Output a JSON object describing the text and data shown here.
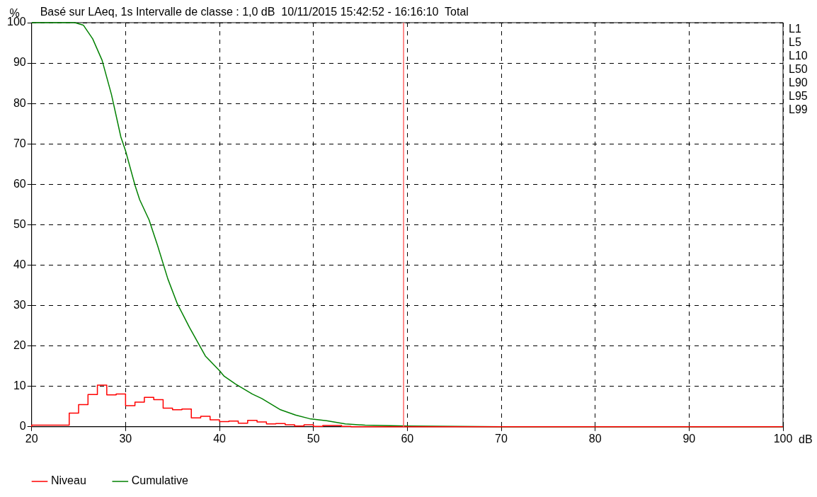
{
  "chart_data": {
    "type": "step",
    "title": "Basé sur LAeq, 1s Intervalle de classe : 1,0 dB  10/11/2015 15:42:52 - 16:16:10  Total",
    "xlabel": "dB",
    "ylabel": "%",
    "xlim": [
      20,
      100
    ],
    "xticks": [
      20,
      30,
      40,
      50,
      60,
      70,
      80,
      90,
      100
    ],
    "ylim": [
      0,
      100
    ],
    "yticks": [
      0,
      10,
      20,
      30,
      40,
      50,
      60,
      70,
      80,
      90,
      100
    ],
    "grid": true,
    "legend": "bottom",
    "series": [
      {
        "name": "Niveau",
        "color": "#ff0000",
        "x": [
          20,
          24,
          25,
          26,
          27,
          28,
          29,
          30,
          31,
          32,
          33,
          34,
          35,
          36,
          37,
          38,
          39,
          40,
          41,
          42,
          43,
          44,
          45,
          46,
          47,
          48,
          49,
          50,
          51,
          52,
          53,
          54,
          55,
          100
        ],
        "values": [
          0,
          0.4,
          3.4,
          5.5,
          8.0,
          10.3,
          7.9,
          8.1,
          5.2,
          6.1,
          7.3,
          6.7,
          4.6,
          4.2,
          4.4,
          2.2,
          2.6,
          1.7,
          1.3,
          1.4,
          0.9,
          1.6,
          1.2,
          0.7,
          0.8,
          0.5,
          0.2,
          0.5,
          0.1,
          0.3,
          0.3,
          0.1,
          0,
          0
        ]
      },
      {
        "name": "Cumulative",
        "type": "line",
        "color": "#008000",
        "x": [
          20,
          24.6,
          25.5,
          26.5,
          27.5,
          28.5,
          29.5,
          30,
          31,
          31.5,
          32.5,
          33.4,
          34.5,
          35.5,
          36.8,
          38.5,
          40,
          40.5,
          41.7,
          43.5,
          44.5,
          46.5,
          48.1,
          49.6,
          51.4,
          53.4,
          55.5,
          60,
          70,
          100
        ],
        "values": [
          100,
          100,
          99.4,
          96,
          90.7,
          82.2,
          71.7,
          68.3,
          59.8,
          56.2,
          51.2,
          44.9,
          36.6,
          30.5,
          24.6,
          17.5,
          13.9,
          12.5,
          10.6,
          8.1,
          7.0,
          4.2,
          2.9,
          2.0,
          1.5,
          0.7,
          0.4,
          0.2,
          0,
          0
        ]
      }
    ],
    "ref_lines": [
      {
        "axis": "x",
        "value": 59.6,
        "color": "#ff6666"
      }
    ],
    "annotations": [
      "L1",
      "L5",
      "L10",
      "L50",
      "L90",
      "L95",
      "L99"
    ]
  }
}
